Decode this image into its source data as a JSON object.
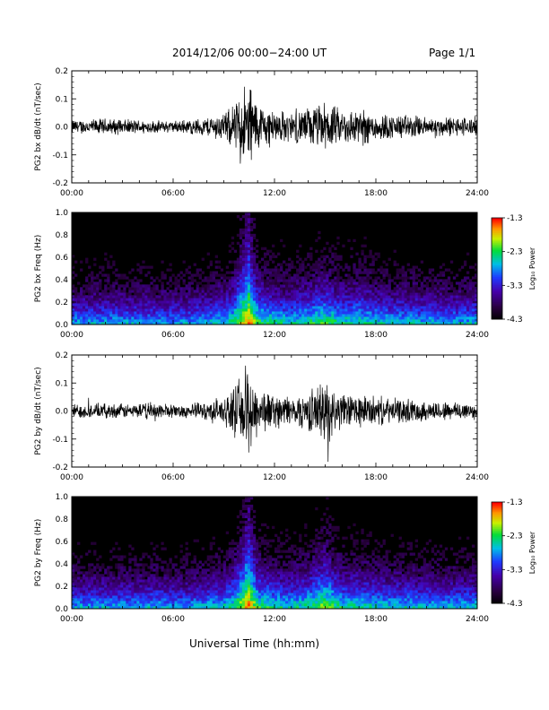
{
  "header": {
    "title": "2014/12/06  00:00−24:00 UT",
    "page": "Page 1/1"
  },
  "xlabel": "Universal Time (hh:mm)",
  "colorbar": {
    "label": "Log₁₀ Power",
    "ticks": [
      "-1.3",
      "-2.3",
      "-3.3",
      "-4.3"
    ],
    "range": [
      -4.3,
      -1.3
    ]
  },
  "chart_data": [
    {
      "type": "line",
      "ylabel": "PG2 bx dB/dt (nT/sec)",
      "xlim": [
        0,
        24
      ],
      "ylim": [
        -0.2,
        0.2
      ],
      "xticks": [
        "00:00",
        "06:00",
        "12:00",
        "18:00",
        "24:00"
      ],
      "yticks": [
        "0.2",
        "0.1",
        "0.0",
        "-0.1",
        "-0.2"
      ],
      "envelope_hours": [
        0,
        1,
        2,
        3,
        4,
        5,
        6,
        7,
        8,
        9,
        9.5,
        10,
        10.5,
        11,
        12,
        13,
        14,
        15,
        16,
        17,
        18,
        19,
        20,
        21,
        22,
        23,
        24
      ],
      "envelope_amplitude": [
        0.03,
        0.03,
        0.035,
        0.03,
        0.03,
        0.025,
        0.025,
        0.03,
        0.04,
        0.06,
        0.08,
        0.15,
        0.2,
        0.1,
        0.07,
        0.06,
        0.08,
        0.1,
        0.07,
        0.08,
        0.06,
        0.05,
        0.05,
        0.04,
        0.04,
        0.04,
        0.04
      ]
    },
    {
      "type": "heatmap",
      "ylabel": "PG2 bx Freq (Hz)",
      "xlim": [
        0,
        24
      ],
      "ylim": [
        0,
        1.0
      ],
      "xticks": [
        "00:00",
        "06:00",
        "12:00",
        "18:00",
        "24:00"
      ],
      "yticks": [
        "1.0",
        "0.8",
        "0.6",
        "0.4",
        "0.2",
        "0.0"
      ],
      "zlim": [
        -4.3,
        -1.3
      ]
    },
    {
      "type": "line",
      "ylabel": "PG2 by dB/dt (nT/sec)",
      "xlim": [
        0,
        24
      ],
      "ylim": [
        -0.2,
        0.2
      ],
      "xticks": [
        "00:00",
        "06:00",
        "12:00",
        "18:00",
        "24:00"
      ],
      "yticks": [
        "0.2",
        "0.1",
        "0.0",
        "-0.1",
        "-0.2"
      ],
      "envelope_hours": [
        0,
        1,
        2,
        3,
        4,
        5,
        6,
        7,
        8,
        9,
        9.5,
        10,
        10.5,
        11,
        12,
        13,
        14,
        15,
        16,
        17,
        18,
        19,
        20,
        21,
        22,
        23,
        24
      ],
      "envelope_amplitude": [
        0.03,
        0.03,
        0.03,
        0.03,
        0.03,
        0.04,
        0.025,
        0.03,
        0.04,
        0.06,
        0.08,
        0.14,
        0.2,
        0.1,
        0.07,
        0.06,
        0.08,
        0.13,
        0.07,
        0.07,
        0.06,
        0.05,
        0.05,
        0.04,
        0.04,
        0.04,
        0.04
      ]
    },
    {
      "type": "heatmap",
      "ylabel": "PG2 by Freq (Hz)",
      "xlim": [
        0,
        24
      ],
      "ylim": [
        0,
        1.0
      ],
      "xticks": [
        "00:00",
        "06:00",
        "12:00",
        "18:00",
        "24:00"
      ],
      "yticks": [
        "1.0",
        "0.8",
        "0.6",
        "0.4",
        "0.2",
        "0.0"
      ],
      "zlim": [
        -4.3,
        -1.3
      ]
    }
  ]
}
